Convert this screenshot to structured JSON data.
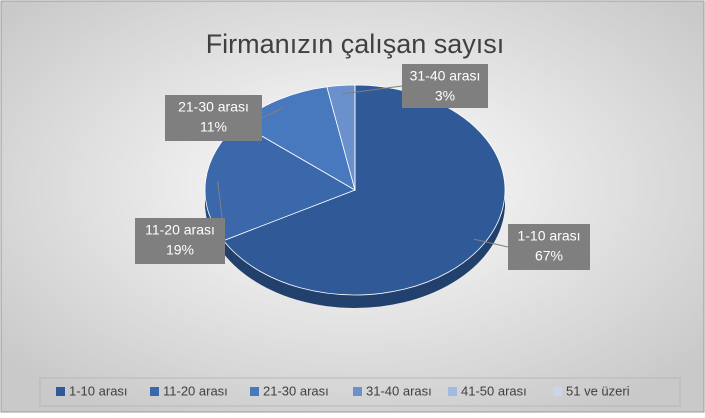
{
  "chart_data": {
    "type": "pie",
    "title": "Firmanızın çalışan sayısı",
    "categories": [
      "1-10 arası",
      "11-20 arası",
      "21-30 arası",
      "31-40 arası",
      "41-50 arası",
      "51 ve üzeri"
    ],
    "values": [
      67,
      19,
      11,
      3,
      0,
      0
    ],
    "value_labels": [
      "67%",
      "19%",
      "11%",
      "3%",
      null,
      null
    ],
    "colors": [
      "#2f5a97",
      "#3a68ab",
      "#4878bd",
      "#6b91cc",
      "#a3bbe0",
      "#c8d5ec"
    ],
    "legend": "bottom"
  }
}
